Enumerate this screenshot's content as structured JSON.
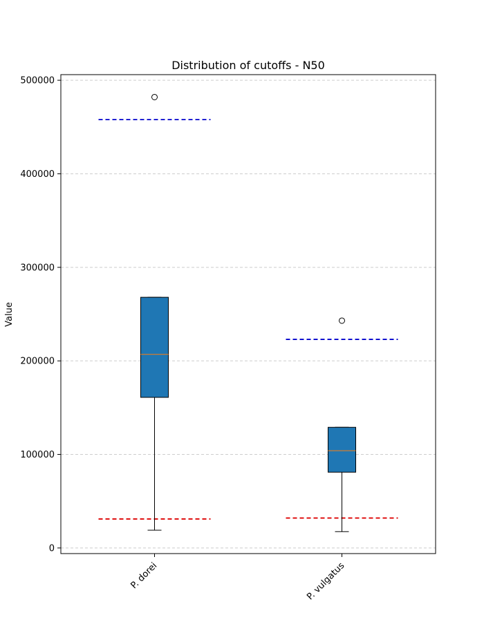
{
  "chart_data": {
    "type": "box",
    "title": "Distribution of cutoffs - N50",
    "xlabel": "",
    "ylabel": "Value",
    "ylim": [
      -6000,
      506000
    ],
    "yticks": [
      0,
      100000,
      200000,
      300000,
      400000,
      500000
    ],
    "ytick_labels": [
      "0",
      "100000",
      "200000",
      "300000",
      "400000",
      "500000"
    ],
    "grid": "horizontal-dashed",
    "categories": [
      "P. dorei",
      "P. vulgatus"
    ],
    "boxes": [
      {
        "name": "P. dorei",
        "whisker_low": 19000,
        "q1": 161000,
        "median": 207000,
        "q3": 268000,
        "whisker_high": 268000,
        "outliers": [
          482000
        ],
        "upper_line": 458000,
        "lower_line": 31000
      },
      {
        "name": "P. vulgatus",
        "whisker_low": 17500,
        "q1": 81000,
        "median": 104000,
        "q3": 129000,
        "whisker_high": 129000,
        "outliers": [
          243000
        ],
        "upper_line": 223000,
        "lower_line": 32000
      }
    ],
    "colors": {
      "box_fill": "#1f77b4",
      "median": "#ff7f0e",
      "upper_line": "#0000cc",
      "lower_line": "#dd0000",
      "grid": "#cccccc"
    }
  }
}
